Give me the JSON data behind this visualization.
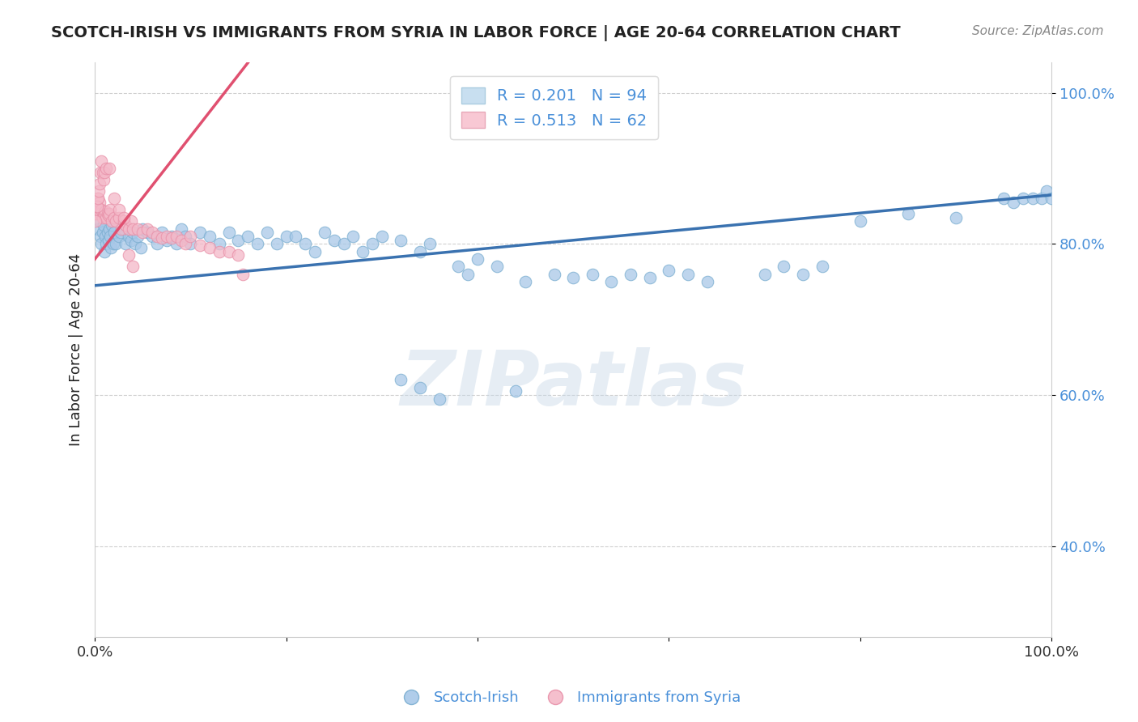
{
  "title": "SCOTCH-IRISH VS IMMIGRANTS FROM SYRIA IN LABOR FORCE | AGE 20-64 CORRELATION CHART",
  "source": "Source: ZipAtlas.com",
  "ylabel": "In Labor Force | Age 20-64",
  "xlim": [
    0.0,
    1.0
  ],
  "ylim": [
    0.28,
    1.04
  ],
  "blue_color": "#a8c8e8",
  "blue_edge_color": "#7aaed0",
  "pink_color": "#f4b8c8",
  "pink_edge_color": "#e890a8",
  "blue_line_color": "#3a72b0",
  "pink_line_color": "#e05070",
  "R_blue": 0.201,
  "N_blue": 94,
  "R_pink": 0.513,
  "N_pink": 62,
  "blue_line_x0": 0.0,
  "blue_line_y0": 0.745,
  "blue_line_x1": 1.0,
  "blue_line_y1": 0.865,
  "pink_line_x0": 0.0,
  "pink_line_y0": 0.78,
  "pink_line_x1": 0.16,
  "pink_line_y1": 1.04,
  "blue_x": [
    0.003,
    0.005,
    0.006,
    0.007,
    0.008,
    0.009,
    0.01,
    0.011,
    0.012,
    0.013,
    0.014,
    0.015,
    0.016,
    0.017,
    0.018,
    0.019,
    0.02,
    0.022,
    0.025,
    0.027,
    0.03,
    0.032,
    0.035,
    0.038,
    0.04,
    0.042,
    0.045,
    0.048,
    0.05,
    0.055,
    0.06,
    0.065,
    0.07,
    0.075,
    0.08,
    0.085,
    0.09,
    0.095,
    0.1,
    0.11,
    0.12,
    0.13,
    0.14,
    0.15,
    0.16,
    0.17,
    0.18,
    0.19,
    0.2,
    0.21,
    0.22,
    0.23,
    0.24,
    0.25,
    0.26,
    0.27,
    0.28,
    0.29,
    0.3,
    0.32,
    0.34,
    0.35,
    0.38,
    0.39,
    0.4,
    0.42,
    0.45,
    0.48,
    0.5,
    0.52,
    0.54,
    0.56,
    0.58,
    0.6,
    0.62,
    0.64,
    0.7,
    0.72,
    0.74,
    0.76,
    0.8,
    0.85,
    0.9,
    0.95,
    0.96,
    0.97,
    0.98,
    0.99,
    0.995,
    1.0,
    0.32,
    0.34,
    0.36,
    0.44
  ],
  "blue_y": [
    0.82,
    0.83,
    0.81,
    0.8,
    0.815,
    0.825,
    0.79,
    0.81,
    0.8,
    0.815,
    0.805,
    0.82,
    0.81,
    0.795,
    0.825,
    0.8,
    0.815,
    0.8,
    0.81,
    0.815,
    0.82,
    0.8,
    0.81,
    0.805,
    0.815,
    0.8,
    0.81,
    0.795,
    0.82,
    0.815,
    0.81,
    0.8,
    0.815,
    0.805,
    0.81,
    0.8,
    0.82,
    0.81,
    0.8,
    0.815,
    0.81,
    0.8,
    0.815,
    0.805,
    0.81,
    0.8,
    0.815,
    0.8,
    0.81,
    0.81,
    0.8,
    0.79,
    0.815,
    0.805,
    0.8,
    0.81,
    0.79,
    0.8,
    0.81,
    0.805,
    0.79,
    0.8,
    0.77,
    0.76,
    0.78,
    0.77,
    0.75,
    0.76,
    0.755,
    0.76,
    0.75,
    0.76,
    0.755,
    0.765,
    0.76,
    0.75,
    0.76,
    0.77,
    0.76,
    0.77,
    0.83,
    0.84,
    0.835,
    0.86,
    0.855,
    0.86,
    0.86,
    0.86,
    0.87,
    0.86,
    0.62,
    0.61,
    0.595,
    0.605
  ],
  "pink_x": [
    0.0,
    0.001,
    0.002,
    0.003,
    0.004,
    0.005,
    0.006,
    0.007,
    0.008,
    0.009,
    0.01,
    0.011,
    0.012,
    0.013,
    0.014,
    0.015,
    0.016,
    0.018,
    0.02,
    0.022,
    0.025,
    0.028,
    0.03,
    0.032,
    0.035,
    0.038,
    0.04,
    0.045,
    0.05,
    0.055,
    0.06,
    0.065,
    0.07,
    0.075,
    0.08,
    0.085,
    0.09,
    0.095,
    0.1,
    0.11,
    0.12,
    0.13,
    0.14,
    0.15,
    0.155,
    0.001,
    0.002,
    0.003,
    0.004,
    0.005,
    0.006,
    0.007,
    0.008,
    0.009,
    0.01,
    0.012,
    0.015,
    0.02,
    0.025,
    0.03,
    0.035,
    0.04
  ],
  "pink_y": [
    0.84,
    0.85,
    0.84,
    0.86,
    0.845,
    0.855,
    0.84,
    0.845,
    0.835,
    0.84,
    0.838,
    0.843,
    0.835,
    0.84,
    0.838,
    0.84,
    0.845,
    0.83,
    0.835,
    0.83,
    0.835,
    0.82,
    0.83,
    0.825,
    0.82,
    0.83,
    0.82,
    0.82,
    0.815,
    0.82,
    0.815,
    0.81,
    0.808,
    0.81,
    0.808,
    0.81,
    0.805,
    0.8,
    0.81,
    0.798,
    0.795,
    0.79,
    0.79,
    0.785,
    0.76,
    0.83,
    0.85,
    0.86,
    0.87,
    0.88,
    0.895,
    0.91,
    0.895,
    0.885,
    0.895,
    0.9,
    0.9,
    0.86,
    0.845,
    0.835,
    0.785,
    0.77
  ],
  "watermark_text": "ZIPatlas",
  "background_color": "#ffffff",
  "grid_color": "#bbbbbb",
  "title_color": "#222222",
  "source_color": "#888888",
  "yticklabel_color": "#4a90d9",
  "xticklabel_color": "#333333",
  "legend_text_color": "#4a90d9"
}
